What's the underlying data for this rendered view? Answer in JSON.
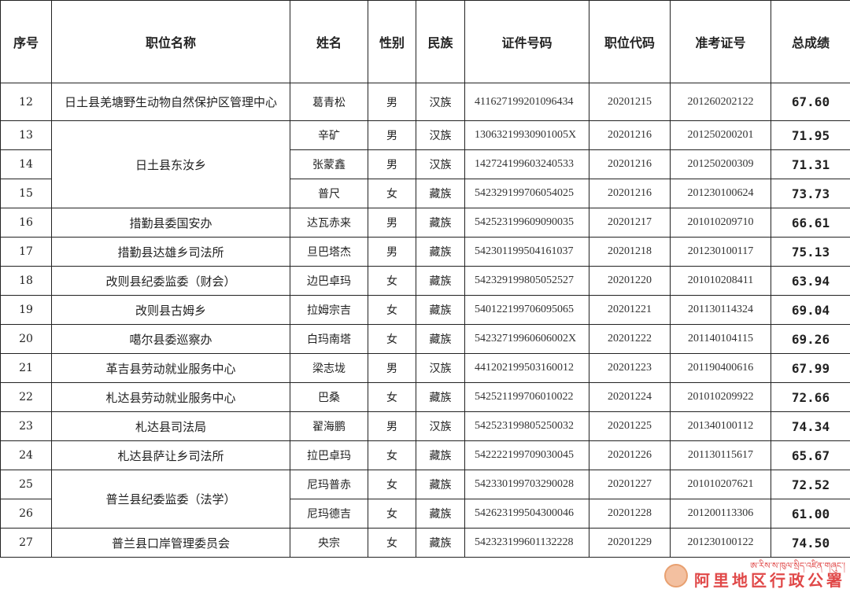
{
  "headers": [
    "序号",
    "职位名称",
    "姓名",
    "性别",
    "民族",
    "证件号码",
    "职位代码",
    "准考证号",
    "总成绩"
  ],
  "rows": [
    {
      "no": "12",
      "position": "日土县羌塘野生动物自然保护区管理中心",
      "name": "葛青松",
      "gender": "男",
      "ethnicity": "汉族",
      "id": "411627199201096434",
      "code": "20201215",
      "ticket": "201260202122",
      "score": "67.60"
    },
    {
      "no": "13",
      "position": "日土县东汝乡",
      "name": "辛矿",
      "gender": "男",
      "ethnicity": "汉族",
      "id": "13063219930901005X",
      "code": "20201216",
      "ticket": "201250200201",
      "score": "71.95"
    },
    {
      "no": "14",
      "position": "日土县东汝乡",
      "name": "张蒙鑫",
      "gender": "男",
      "ethnicity": "汉族",
      "id": "142724199603240533",
      "code": "20201216",
      "ticket": "201250200309",
      "score": "71.31"
    },
    {
      "no": "15",
      "position": "日土县东汝乡",
      "name": "普尺",
      "gender": "女",
      "ethnicity": "藏族",
      "id": "542329199706054025",
      "code": "20201216",
      "ticket": "201230100624",
      "score": "73.73"
    },
    {
      "no": "16",
      "position": "措勤县委国安办",
      "name": "达瓦赤来",
      "gender": "男",
      "ethnicity": "藏族",
      "id": "542523199609090035",
      "code": "20201217",
      "ticket": "201010209710",
      "score": "66.61"
    },
    {
      "no": "17",
      "position": "措勤县达雄乡司法所",
      "name": "旦巴塔杰",
      "gender": "男",
      "ethnicity": "藏族",
      "id": "542301199504161037",
      "code": "20201218",
      "ticket": "201230100117",
      "score": "75.13"
    },
    {
      "no": "18",
      "position": "改则县纪委监委（财会）",
      "name": "边巴卓玛",
      "gender": "女",
      "ethnicity": "藏族",
      "id": "542329199805052527",
      "code": "20201220",
      "ticket": "201010208411",
      "score": "63.94"
    },
    {
      "no": "19",
      "position": "改则县古姆乡",
      "name": "拉姆宗吉",
      "gender": "女",
      "ethnicity": "藏族",
      "id": "540122199706095065",
      "code": "20201221",
      "ticket": "201130114324",
      "score": "69.04"
    },
    {
      "no": "20",
      "position": "噶尔县委巡察办",
      "name": "白玛南塔",
      "gender": "女",
      "ethnicity": "藏族",
      "id": "54232719960606002X",
      "code": "20201222",
      "ticket": "201140104115",
      "score": "69.26"
    },
    {
      "no": "21",
      "position": "革吉县劳动就业服务中心",
      "name": "梁志垅",
      "gender": "男",
      "ethnicity": "汉族",
      "id": "441202199503160012",
      "code": "20201223",
      "ticket": "201190400616",
      "score": "67.99"
    },
    {
      "no": "22",
      "position": "札达县劳动就业服务中心",
      "name": "巴桑",
      "gender": "女",
      "ethnicity": "藏族",
      "id": "542521199706010022",
      "code": "20201224",
      "ticket": "201010209922",
      "score": "72.66"
    },
    {
      "no": "23",
      "position": "札达县司法局",
      "name": "翟海鹏",
      "gender": "男",
      "ethnicity": "汉族",
      "id": "542523199805250032",
      "code": "20201225",
      "ticket": "201340100112",
      "score": "74.34"
    },
    {
      "no": "24",
      "position": "札达县萨让乡司法所",
      "name": "拉巴卓玛",
      "gender": "女",
      "ethnicity": "藏族",
      "id": "542222199709030045",
      "code": "20201226",
      "ticket": "201130115617",
      "score": "65.67"
    },
    {
      "no": "25",
      "position": "普兰县纪委监委（法学）",
      "name": "尼玛普赤",
      "gender": "女",
      "ethnicity": "藏族",
      "id": "542330199703290028",
      "code": "20201227",
      "ticket": "201010207621",
      "score": "72.52"
    },
    {
      "no": "26",
      "position": "普兰县纪委监委（法学）",
      "name": "尼玛德吉",
      "gender": "女",
      "ethnicity": "藏族",
      "id": "542623199504300046",
      "code": "20201228",
      "ticket": "201200113306",
      "score": "61.00"
    },
    {
      "no": "27",
      "position": "普兰县口岸管理委员会",
      "name": "央宗",
      "gender": "女",
      "ethnicity": "藏族",
      "id": "542323199601132228",
      "code": "20201229",
      "ticket": "201230100122",
      "score": "74.50"
    }
  ],
  "watermark": {
    "text": "阿里地区行政公署",
    "color": "#e04848"
  }
}
